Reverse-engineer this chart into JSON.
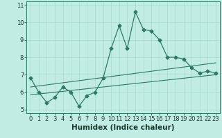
{
  "xlabel": "Humidex (Indice chaleur)",
  "x_values": [
    0,
    1,
    2,
    3,
    4,
    5,
    6,
    7,
    8,
    9,
    10,
    11,
    12,
    13,
    14,
    15,
    16,
    17,
    18,
    19,
    20,
    21,
    22,
    23
  ],
  "y_main": [
    6.8,
    6.0,
    5.4,
    5.7,
    6.3,
    6.0,
    5.2,
    5.8,
    6.0,
    6.8,
    8.5,
    9.8,
    8.5,
    10.6,
    9.6,
    9.5,
    9.0,
    8.0,
    8.0,
    7.9,
    7.4,
    7.1,
    7.2,
    7.1
  ],
  "y_line1": [
    5.85,
    5.9,
    5.95,
    6.0,
    6.05,
    6.1,
    6.15,
    6.2,
    6.25,
    6.3,
    6.35,
    6.4,
    6.45,
    6.5,
    6.55,
    6.6,
    6.65,
    6.7,
    6.75,
    6.8,
    6.85,
    6.9,
    6.95,
    7.0
  ],
  "y_line2": [
    6.3,
    6.36,
    6.42,
    6.48,
    6.54,
    6.6,
    6.66,
    6.72,
    6.78,
    6.84,
    6.9,
    6.96,
    7.02,
    7.08,
    7.14,
    7.2,
    7.26,
    7.32,
    7.38,
    7.44,
    7.5,
    7.56,
    7.62,
    7.68
  ],
  "line_color": "#2a7a65",
  "bg_color": "#c0ece4",
  "grid_color": "#a8d8ce",
  "ylim": [
    4.8,
    11.2
  ],
  "xlim": [
    -0.5,
    23.5
  ],
  "yticks": [
    5,
    6,
    7,
    8,
    9,
    10,
    11
  ],
  "xticks": [
    0,
    1,
    2,
    3,
    4,
    5,
    6,
    7,
    8,
    9,
    10,
    11,
    12,
    13,
    14,
    15,
    16,
    17,
    18,
    19,
    20,
    21,
    22,
    23
  ],
  "xlabel_fontsize": 7.5,
  "tick_fontsize": 6.0,
  "marker": "D",
  "marker_size": 2.5,
  "lw_main": 0.9,
  "lw_trend": 0.8
}
